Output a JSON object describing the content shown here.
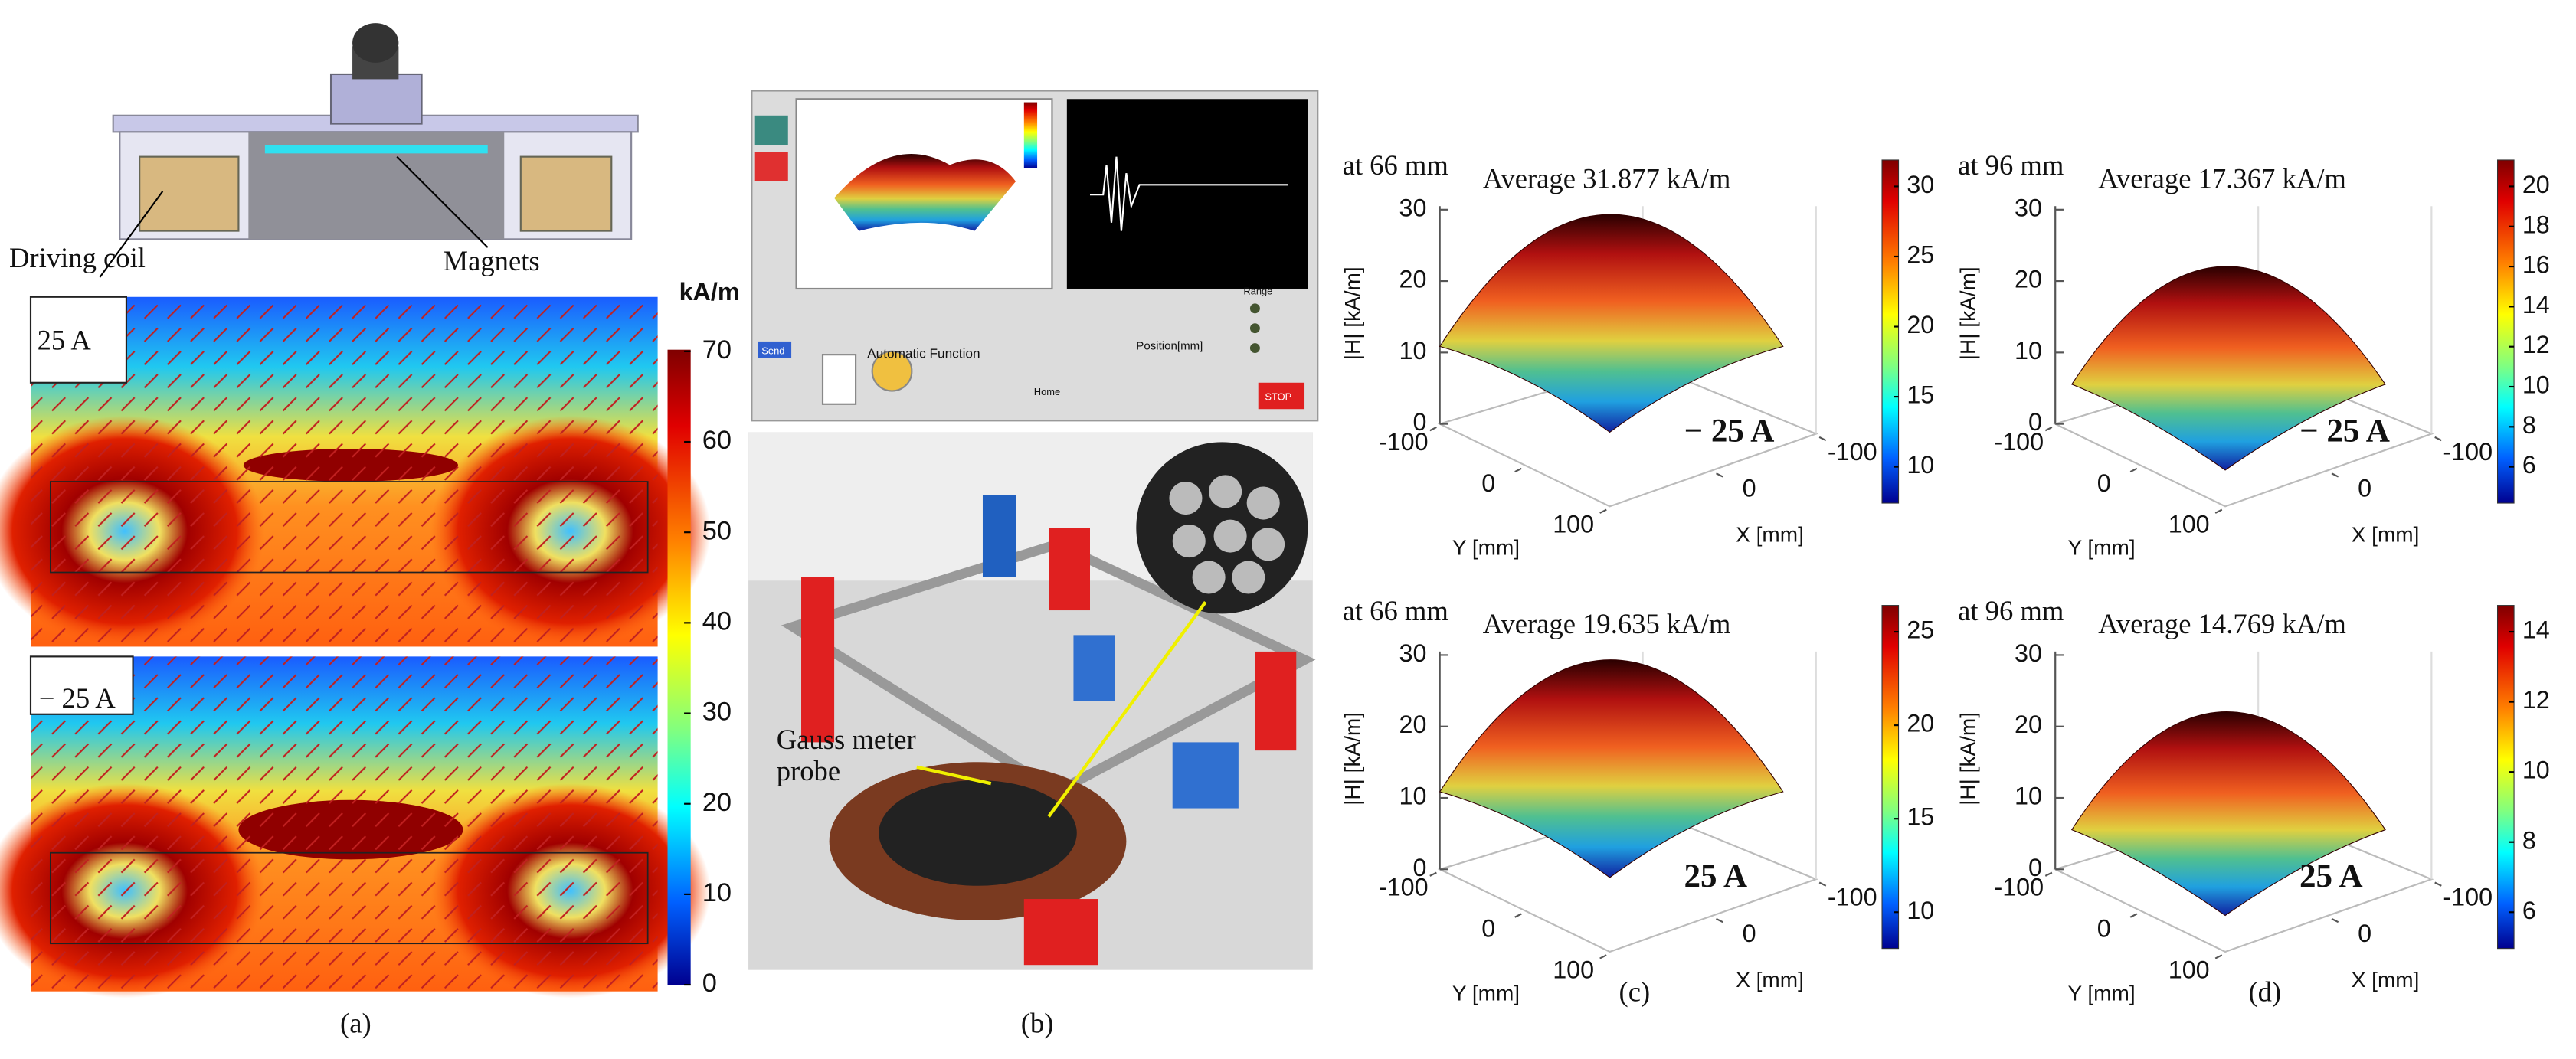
{
  "panel_a": {
    "caption": "(a)",
    "coil_label": "Driving coil",
    "magnet_label": "Magnets",
    "field_labels": [
      "25 A",
      "− 25 A"
    ],
    "colorbar": {
      "unit": "kA/m",
      "ticks": [
        70,
        60,
        50,
        40,
        30,
        20,
        10,
        0
      ]
    }
  },
  "panel_b": {
    "caption": "(b)",
    "probe_label": "Gauss meter probe",
    "software": {
      "automatic": "Automatic Function",
      "position": "Position[mm]",
      "range": "Range",
      "send": "Send",
      "home": "Home",
      "stop": "STOP"
    }
  },
  "panel_c": {
    "caption": "(c)",
    "plots": [
      {
        "distance": "at 66 mm",
        "average": "Average 31.877 kA/m",
        "current": "− 25 A",
        "z_label": "|H| [kA/m]",
        "z_ticks": [
          0,
          10,
          20,
          30
        ],
        "y_label": "Y [mm]",
        "y_ticks": [
          -100,
          0,
          100
        ],
        "x_label": "X [mm]",
        "x_ticks": [
          0,
          -100
        ],
        "colorbar_ticks": [
          30,
          25,
          20,
          15,
          10
        ]
      },
      {
        "distance": "at 66 mm",
        "average": "Average 19.635 kA/m",
        "current": "25 A",
        "z_label": "|H| [kA/m]",
        "z_ticks": [
          0,
          10,
          20,
          30
        ],
        "y_label": "Y [mm]",
        "y_ticks": [
          -100,
          0,
          100
        ],
        "x_label": "X [mm]",
        "x_ticks": [
          0,
          -100
        ],
        "colorbar_ticks": [
          25,
          20,
          15,
          10
        ]
      }
    ]
  },
  "panel_d": {
    "caption": "(d)",
    "plots": [
      {
        "distance": "at 96 mm",
        "average": "Average 17.367 kA/m",
        "current": "− 25 A",
        "z_label": "|H| [kA/m]",
        "z_ticks": [
          0,
          10,
          20,
          30
        ],
        "y_label": "Y [mm]",
        "y_ticks": [
          -100,
          0,
          100
        ],
        "x_label": "X [mm]",
        "x_ticks": [
          0,
          -100
        ],
        "colorbar_ticks": [
          20,
          18,
          16,
          14,
          12,
          10,
          8,
          6
        ]
      },
      {
        "distance": "at 96 mm",
        "average": "Average 14.769 kA/m",
        "current": "25 A",
        "z_label": "|H| [kA/m]",
        "z_ticks": [
          0,
          10,
          20,
          30
        ],
        "y_label": "Y [mm]",
        "y_ticks": [
          -100,
          0,
          100
        ],
        "x_label": "X [mm]",
        "x_ticks": [
          0,
          -100
        ],
        "colorbar_ticks": [
          14,
          12,
          10,
          8,
          6
        ]
      }
    ]
  }
}
